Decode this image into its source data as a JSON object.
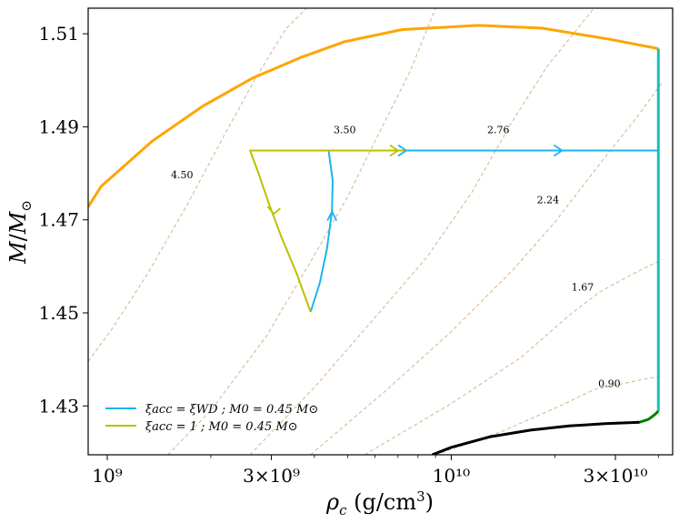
{
  "chart_data": {
    "type": "line",
    "title": "",
    "xlabel": "ρ_c (g/cm³)",
    "ylabel": "M/M⊙",
    "xscale": "log",
    "xlim": [
      880000000.0,
      44000000000.0
    ],
    "ylim": [
      1.4195,
      1.5155
    ],
    "grid": false,
    "legend_position": "lower-left",
    "x_ticks": [
      {
        "value": 1000000000.0,
        "label": "10⁹"
      },
      {
        "value": 3000000000.0,
        "label": "3×10⁹"
      },
      {
        "value": 10000000000.0,
        "label": "10¹⁰"
      },
      {
        "value": 30000000000.0,
        "label": "3×10¹⁰"
      }
    ],
    "y_ticks": [
      {
        "value": 1.43,
        "label": "1.43"
      },
      {
        "value": 1.45,
        "label": "1.45"
      },
      {
        "value": 1.47,
        "label": "1.47"
      },
      {
        "value": 1.49,
        "label": "1.49"
      },
      {
        "value": 1.51,
        "label": "1.51"
      }
    ],
    "contours": [
      {
        "label": "4.50",
        "label_x": 1650000000.0,
        "label_y": 1.4797,
        "points": [
          [
            880000000.0,
            1.4396
          ],
          [
            1020000000.0,
            1.446
          ],
          [
            1300000000.0,
            1.458
          ],
          [
            1700000000.0,
            1.473
          ],
          [
            2200000000.0,
            1.4885
          ],
          [
            2700000000.0,
            1.5005
          ],
          [
            3300000000.0,
            1.511
          ],
          [
            3800000000.0,
            1.5155
          ]
        ]
      },
      {
        "label": "3.50",
        "label_x": 4900000000.0,
        "label_y": 1.4894,
        "points": [
          [
            1500000000.0,
            1.4195
          ],
          [
            2000000000.0,
            1.429
          ],
          [
            2900000000.0,
            1.445
          ],
          [
            3900000000.0,
            1.461
          ],
          [
            5000000000.0,
            1.475
          ],
          [
            6200000000.0,
            1.489
          ],
          [
            7600000000.0,
            1.502
          ],
          [
            9000000000.0,
            1.5155
          ]
        ]
      },
      {
        "label": "2.76",
        "label_x": 13700000000.0,
        "label_y": 1.4894,
        "points": [
          [
            2600000000.0,
            1.4195
          ],
          [
            4000000000.0,
            1.434
          ],
          [
            6000000000.0,
            1.449
          ],
          [
            8500000000.0,
            1.462
          ],
          [
            11500000000.0,
            1.476
          ],
          [
            15000000000.0,
            1.491
          ],
          [
            19000000000.0,
            1.503
          ],
          [
            26000000000.0,
            1.5155
          ]
        ]
      },
      {
        "label": "2.24",
        "label_x": 19100000000.0,
        "label_y": 1.4743,
        "points": [
          [
            3900000000.0,
            1.4195
          ],
          [
            6500000000.0,
            1.4335
          ],
          [
            10000000000.0,
            1.446
          ],
          [
            15000000000.0,
            1.459
          ],
          [
            20000000000.0,
            1.4695
          ],
          [
            28000000000.0,
            1.4835
          ],
          [
            35000000000.0,
            1.4925
          ],
          [
            41000000000.0,
            1.4995
          ]
        ]
      },
      {
        "label": "1.67",
        "label_x": 24100000000.0,
        "label_y": 1.4556,
        "points": [
          [
            5600000000.0,
            1.4195
          ],
          [
            10000000000.0,
            1.4305
          ],
          [
            16000000000.0,
            1.4405
          ],
          [
            22000000000.0,
            1.4495
          ],
          [
            27000000000.0,
            1.4545
          ],
          [
            34000000000.0,
            1.4585
          ],
          [
            41000000000.0,
            1.4615
          ]
        ]
      },
      {
        "label": "0.90",
        "label_x": 28800000000.0,
        "label_y": 1.4348,
        "points": [
          [
            9000000000.0,
            1.4195
          ],
          [
            14000000000.0,
            1.4245
          ],
          [
            20000000000.0,
            1.4295
          ],
          [
            26000000000.0,
            1.4335
          ],
          [
            35000000000.0,
            1.4355
          ],
          [
            41000000000.0,
            1.4365
          ]
        ]
      }
    ],
    "series": [
      {
        "name": "instability_boundary_orange",
        "color": "#FFA500",
        "points": [
          [
            880000000.0,
            1.4728
          ],
          [
            960000000.0,
            1.4772
          ],
          [
            1350000000.0,
            1.4869
          ],
          [
            1900000000.0,
            1.4945
          ],
          [
            2650000000.0,
            1.5005
          ],
          [
            3650000000.0,
            1.5049
          ],
          [
            4900000000.0,
            1.5083
          ],
          [
            7200000000.0,
            1.5109
          ],
          [
            12000000000.0,
            1.5118
          ],
          [
            18400000000.0,
            1.5112
          ],
          [
            29000000000.0,
            1.5088
          ],
          [
            40000000000.0,
            1.5068
          ]
        ]
      },
      {
        "name": "teal_vertical",
        "color": "#17BEBB",
        "points": [
          [
            40000000000.0,
            1.5068
          ],
          [
            40000000000.0,
            1.4289
          ]
        ]
      },
      {
        "name": "green_segment",
        "color": "#008000",
        "points": [
          [
            35300000000.0,
            1.4265
          ],
          [
            37400000000.0,
            1.4271
          ],
          [
            39000000000.0,
            1.4281
          ],
          [
            40000000000.0,
            1.4289
          ]
        ]
      },
      {
        "name": "black_curve",
        "color": "#000000",
        "points": [
          [
            8800000000.0,
            1.4195
          ],
          [
            10000000000.0,
            1.4211
          ],
          [
            13000000000.0,
            1.4234
          ],
          [
            17000000000.0,
            1.4248
          ],
          [
            22000000000.0,
            1.4257
          ],
          [
            28000000000.0,
            1.4262
          ],
          [
            35300000000.0,
            1.4265
          ]
        ]
      },
      {
        "name": "ξacc = ξWD ; M0 = 0.45 M⊙",
        "color": "#1CB4EE",
        "in_legend": true,
        "points": [
          [
            3900000000.0,
            1.4502
          ],
          [
            4150000000.0,
            1.4565
          ],
          [
            4350000000.0,
            1.4638
          ],
          [
            4500000000.0,
            1.4718
          ],
          [
            4520000000.0,
            1.4785
          ],
          [
            4400000000.0,
            1.4849
          ],
          [
            4400000000.0,
            1.4849
          ],
          [
            10000000000.0,
            1.4849
          ],
          [
            22000000000.0,
            1.4849
          ],
          [
            40000000000.0,
            1.4849
          ]
        ],
        "arrows": [
          [
            4500000000.0,
            1.4718,
            "up"
          ],
          [
            7400000000.0,
            1.4849,
            "right"
          ],
          [
            21000000000.0,
            1.4849,
            "right"
          ]
        ]
      },
      {
        "name": "ξacc = 1 ; M0 = 0.45 M⊙",
        "color": "#BFBF00",
        "in_legend": true,
        "points": [
          [
            3900000000.0,
            1.4502
          ],
          [
            3550000000.0,
            1.4585
          ],
          [
            3200000000.0,
            1.4665
          ],
          [
            2950000000.0,
            1.4735
          ],
          [
            2750000000.0,
            1.4801
          ],
          [
            2600000000.0,
            1.4849
          ],
          [
            2600000000.0,
            1.4849
          ],
          [
            4400000000.0,
            1.4849
          ],
          [
            6000000000.0,
            1.4849
          ],
          [
            7400000000.0,
            1.4849
          ]
        ],
        "arrows": [
          [
            3050000000.0,
            1.4713,
            "down"
          ],
          [
            7000000000.0,
            1.4849,
            "right"
          ]
        ]
      }
    ]
  }
}
